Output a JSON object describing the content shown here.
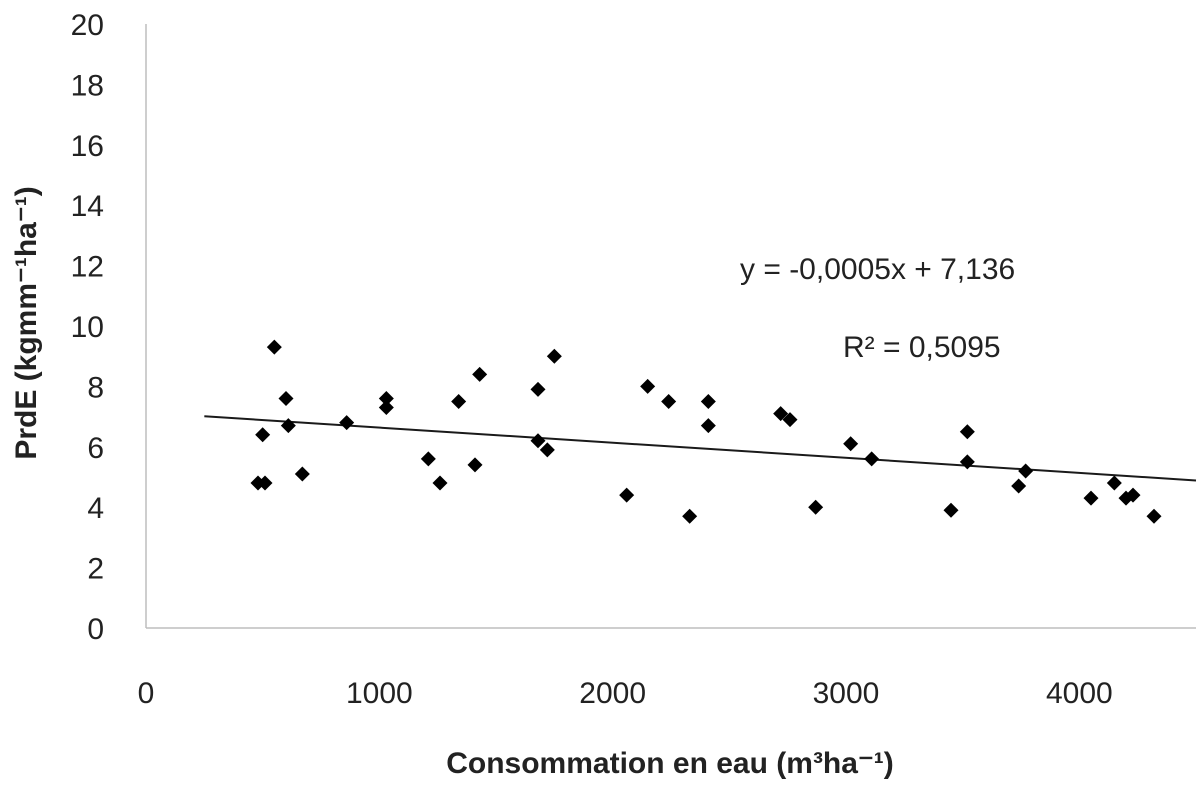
{
  "chart_data": {
    "type": "scatter",
    "title": "",
    "xlabel": "Consommation en eau (m³ha⁻¹)",
    "ylabel": "PrdE (kgmm⁻¹ha⁻¹)",
    "xlim": [
      0,
      4500
    ],
    "ylim": [
      0,
      20
    ],
    "xticks": [
      0,
      1000,
      2000,
      3000,
      4000
    ],
    "yticks": [
      0,
      2,
      4,
      6,
      8,
      10,
      12,
      14,
      16,
      18,
      20
    ],
    "grid": false,
    "legend": "none",
    "marker": "diamond",
    "marker_color": "#000000",
    "series": [
      {
        "name": "",
        "x": [
          480,
          510,
          500,
          550,
          600,
          610,
          670,
          860,
          1030,
          1030,
          1210,
          1260,
          1340,
          1410,
          1430,
          1680,
          1680,
          1720,
          1750,
          2060,
          2150,
          2240,
          2330,
          2410,
          2410,
          2720,
          2760,
          2870,
          3020,
          3110,
          3450,
          3520,
          3520,
          3740,
          3770,
          4050,
          4150,
          4200,
          4230,
          4320
        ],
        "y": [
          4.8,
          4.8,
          6.4,
          9.3,
          7.6,
          6.7,
          5.1,
          6.8,
          7.6,
          7.3,
          5.6,
          4.8,
          7.5,
          5.4,
          8.4,
          7.9,
          6.2,
          5.9,
          9.0,
          4.4,
          8.0,
          7.5,
          3.7,
          7.5,
          6.7,
          7.1,
          6.9,
          4.0,
          6.1,
          5.6,
          3.9,
          6.5,
          5.5,
          4.7,
          5.2,
          4.3,
          4.8,
          4.3,
          4.4,
          3.7
        ]
      }
    ],
    "trendline": {
      "slope": -0.0005,
      "intercept": 7.136,
      "x_range": [
        250,
        4500
      ],
      "equation": "y = -0,0005x + 7,136",
      "r2_label": "R² = 0,5095"
    }
  }
}
